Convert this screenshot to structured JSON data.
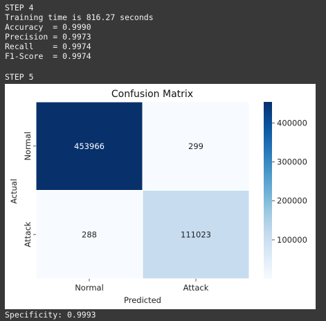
{
  "output": {
    "lines": [
      "STEP 4",
      "Training time is 816.27 seconds",
      "Accuracy  = 0.9990",
      "Precision = 0.9973",
      "Recall    = 0.9974",
      "F1-Score  = 0.9974",
      "",
      "STEP 5"
    ],
    "specificity": "Specificity: 0.9993"
  },
  "chart_data": {
    "type": "heatmap",
    "title": "Confusion Matrix",
    "xlabel": "Predicted",
    "ylabel": "Actual",
    "x_categories": [
      "Normal",
      "Attack"
    ],
    "y_categories": [
      "Normal",
      "Attack"
    ],
    "matrix": [
      [
        453966,
        299
      ],
      [
        288,
        111023
      ]
    ],
    "colormap": "Blues",
    "colorbar": {
      "ticks": [
        100000,
        200000,
        300000,
        400000
      ],
      "tick_labels": [
        "100000",
        "200000",
        "300000",
        "400000"
      ],
      "range": [
        288,
        453966
      ]
    },
    "colors": {
      "low": "#f7fbff",
      "high": "#08306b"
    }
  }
}
